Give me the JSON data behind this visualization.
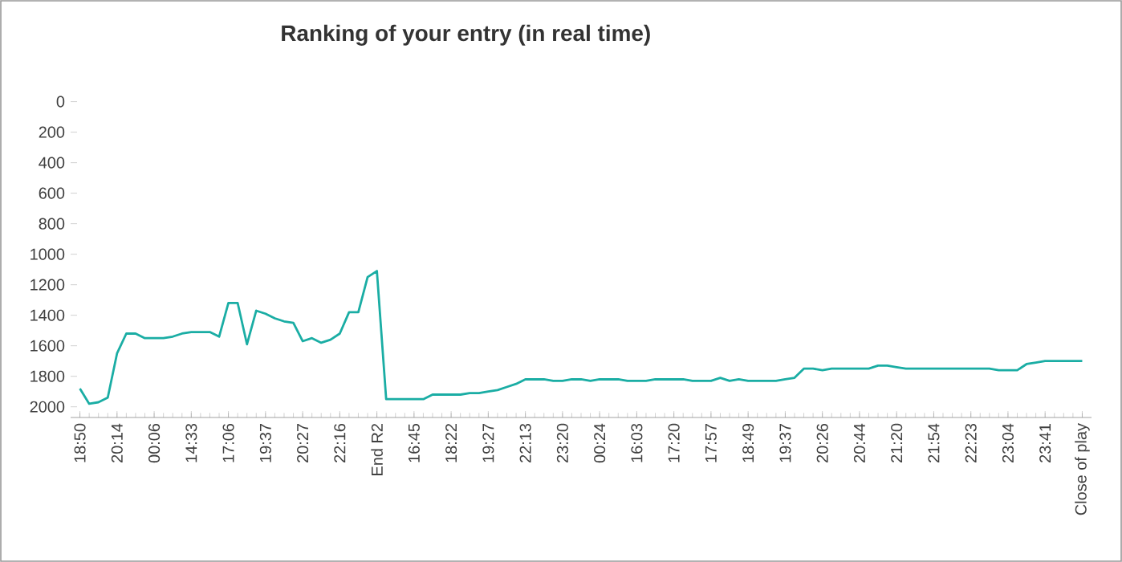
{
  "chart_data": {
    "type": "line",
    "title": "Ranking of your entry (in real time)",
    "categories": [
      "18:50",
      null,
      null,
      null,
      "20:14",
      null,
      null,
      null,
      "00:06",
      null,
      null,
      null,
      "14:33",
      null,
      null,
      null,
      "17:06",
      null,
      null,
      null,
      "19:37",
      null,
      null,
      null,
      "20:27",
      null,
      null,
      null,
      "22:16",
      null,
      null,
      null,
      "End R2",
      null,
      null,
      null,
      "16:45",
      null,
      null,
      null,
      "18:22",
      null,
      null,
      null,
      "19:27",
      null,
      null,
      null,
      "22:13",
      null,
      null,
      null,
      "23:20",
      null,
      null,
      null,
      "00:24",
      null,
      null,
      null,
      "16:03",
      null,
      null,
      null,
      "17:20",
      null,
      null,
      null,
      "17:57",
      null,
      null,
      null,
      "18:49",
      null,
      null,
      null,
      "19:37",
      null,
      null,
      null,
      "20:26",
      null,
      null,
      null,
      "20:44",
      null,
      null,
      null,
      "21:20",
      null,
      null,
      null,
      "21:54",
      null,
      null,
      null,
      "22:23",
      null,
      null,
      null,
      "23:04",
      null,
      null,
      null,
      "23:41",
      null,
      null,
      null,
      "Close of play"
    ],
    "values": [
      1880,
      1980,
      1970,
      1940,
      1650,
      1520,
      1520,
      1550,
      1550,
      1550,
      1540,
      1520,
      1510,
      1510,
      1510,
      1540,
      1320,
      1320,
      1590,
      1370,
      1390,
      1420,
      1440,
      1450,
      1570,
      1550,
      1580,
      1560,
      1520,
      1380,
      1380,
      1150,
      1110,
      1950,
      1950,
      1950,
      1950,
      1950,
      1920,
      1920,
      1920,
      1920,
      1910,
      1910,
      1900,
      1890,
      1870,
      1850,
      1820,
      1820,
      1820,
      1830,
      1830,
      1820,
      1820,
      1830,
      1820,
      1820,
      1820,
      1830,
      1830,
      1830,
      1820,
      1820,
      1820,
      1820,
      1830,
      1830,
      1830,
      1810,
      1830,
      1820,
      1830,
      1830,
      1830,
      1830,
      1820,
      1810,
      1750,
      1750,
      1760,
      1750,
      1750,
      1750,
      1750,
      1750,
      1730,
      1730,
      1740,
      1750,
      1750,
      1750,
      1750,
      1750,
      1750,
      1750,
      1750,
      1750,
      1750,
      1760,
      1760,
      1760,
      1720,
      1710,
      1700,
      1700,
      1700,
      1700,
      1700
    ],
    "color": "#1aada4",
    "ylim": [
      2070,
      0
    ],
    "yticks": [
      0,
      200,
      400,
      600,
      800,
      1000,
      1200,
      1400,
      1600,
      1800,
      2000
    ],
    "grid": false,
    "marker": "none",
    "line_style": "solid"
  }
}
